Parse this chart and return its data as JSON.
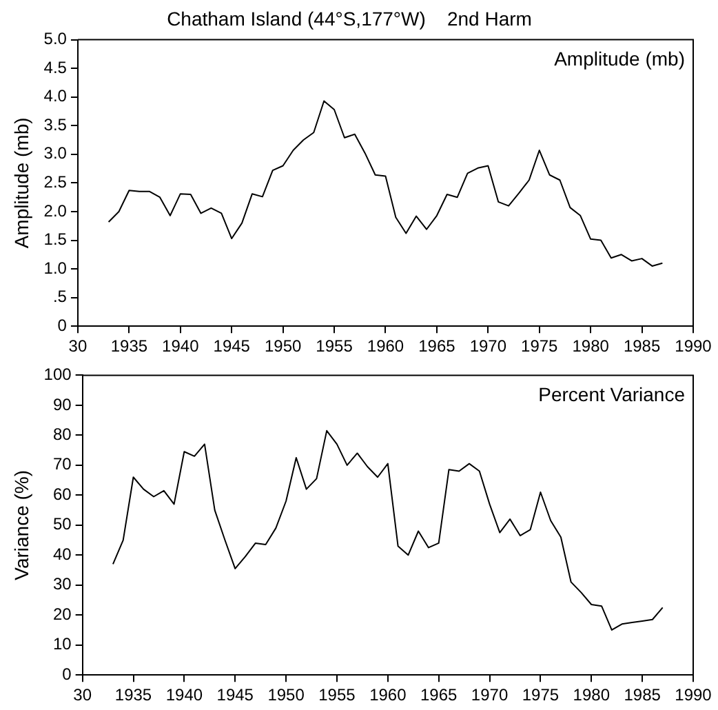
{
  "chart_data": [
    {
      "type": "line",
      "title": "Chatham Island (44°S,177°W)    2nd Harm",
      "ylabel": "Amplitude (mb)",
      "annotations": [
        "Amplitude (mb)"
      ],
      "x": [
        1933,
        1934,
        1935,
        1936,
        1937,
        1938,
        1939,
        1940,
        1941,
        1942,
        1943,
        1944,
        1945,
        1946,
        1947,
        1948,
        1949,
        1950,
        1951,
        1952,
        1953,
        1954,
        1955,
        1956,
        1957,
        1958,
        1959,
        1960,
        1961,
        1962,
        1963,
        1964,
        1965,
        1966,
        1967,
        1968,
        1969,
        1970,
        1971,
        1972,
        1973,
        1974,
        1975,
        1976,
        1977,
        1978,
        1979,
        1980,
        1981,
        1982,
        1983,
        1984,
        1985,
        1986,
        1987
      ],
      "series": [
        {
          "color": "#000000",
          "values": [
            1.82,
            2.0,
            2.37,
            2.35,
            2.35,
            2.25,
            1.93,
            2.31,
            2.3,
            1.97,
            2.06,
            1.97,
            1.53,
            1.8,
            2.31,
            2.26,
            2.72,
            2.8,
            3.07,
            3.25,
            3.38,
            3.93,
            3.78,
            3.29,
            3.35,
            3.02,
            2.64,
            2.62,
            1.9,
            1.62,
            1.92,
            1.69,
            1.93,
            2.3,
            2.25,
            2.67,
            2.76,
            2.8,
            2.17,
            2.1,
            2.32,
            2.55,
            3.07,
            2.64,
            2.55,
            2.07,
            1.93,
            1.52,
            1.5,
            1.19,
            1.25,
            1.14,
            1.18,
            1.05,
            1.1
          ]
        }
      ],
      "xlim": [
        1930,
        1990
      ],
      "xticks": [
        {
          "value": 1930,
          "label": "30"
        },
        1935,
        1940,
        1945,
        1950,
        1955,
        1960,
        1965,
        1970,
        1975,
        1980,
        1985,
        1990
      ],
      "ylim": [
        0,
        5
      ],
      "yticks": [
        0,
        {
          "value": 0.5,
          "label": ".5"
        },
        {
          "value": 1,
          "label": "1.0"
        },
        1.5,
        {
          "value": 2,
          "label": "2.0"
        },
        2.5,
        {
          "value": 3,
          "label": "3.0"
        },
        3.5,
        {
          "value": 4,
          "label": "4.0"
        },
        4.5,
        {
          "value": 5,
          "label": "5.0"
        }
      ],
      "grid": false,
      "legend": false,
      "marker": "none",
      "line_style": "solid"
    },
    {
      "type": "line",
      "ylabel": "Variance (%)",
      "annotations": [
        "Percent Variance"
      ],
      "x": [
        1933,
        1934,
        1935,
        1936,
        1937,
        1938,
        1939,
        1940,
        1941,
        1942,
        1943,
        1944,
        1945,
        1946,
        1947,
        1948,
        1949,
        1950,
        1951,
        1952,
        1953,
        1954,
        1955,
        1956,
        1957,
        1958,
        1959,
        1960,
        1961,
        1962,
        1963,
        1964,
        1965,
        1966,
        1967,
        1968,
        1969,
        1970,
        1971,
        1972,
        1973,
        1974,
        1975,
        1976,
        1977,
        1978,
        1979,
        1980,
        1981,
        1982,
        1983,
        1984,
        1985,
        1986,
        1987
      ],
      "series": [
        {
          "color": "#000000",
          "values": [
            37,
            45,
            66,
            62,
            59.5,
            61.5,
            57,
            74.5,
            73,
            77,
            55,
            45,
            35.5,
            39.5,
            44,
            43.5,
            49,
            58,
            72.5,
            62,
            65.5,
            81.5,
            77,
            70,
            74,
            69.5,
            66,
            70.5,
            43,
            40,
            48,
            42.5,
            44,
            68.5,
            68,
            70.5,
            68,
            57,
            47.5,
            52,
            46.5,
            48.5,
            61,
            51.5,
            46,
            31,
            27.5,
            23.5,
            23,
            15,
            17,
            17.5,
            18,
            18.5,
            22.5
          ]
        }
      ],
      "xlim": [
        1930,
        1990
      ],
      "xticks": [
        {
          "value": 1930,
          "label": "30"
        },
        1935,
        1940,
        1945,
        1950,
        1955,
        1960,
        1965,
        1970,
        1975,
        1980,
        1985,
        1990
      ],
      "ylim": [
        0,
        100
      ],
      "yticks": [
        0,
        10,
        20,
        30,
        40,
        50,
        60,
        70,
        80,
        90,
        100
      ],
      "grid": false,
      "legend": false,
      "marker": "none",
      "line_style": "solid"
    }
  ]
}
